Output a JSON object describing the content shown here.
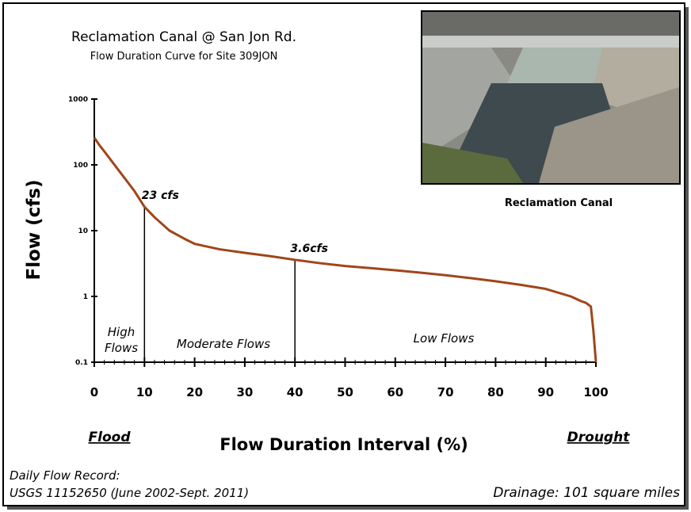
{
  "chart_data": {
    "type": "line",
    "title": "Reclamation Canal @ San Jon Rd.",
    "subtitle": "Flow Duration Curve for Site 309JON",
    "x_label": "Flow Duration Interval (%)",
    "y_label": "Flow (cfs)",
    "x_left_label": "Flood",
    "x_right_label": "Drought",
    "photo_caption": "Reclamation Canal",
    "footnote_lines": [
      "Daily Flow Record:",
      "USGS 11152650 (June 2002-Sept. 2011)"
    ],
    "drainage_note": "Drainage: 101 square miles",
    "region_labels": [
      "High",
      "Flows",
      "Moderate Flows",
      "Low Flows"
    ],
    "annotations": [
      {
        "text": "23 cfs",
        "x": 10,
        "y": 23
      },
      {
        "text": "3.6cfs",
        "x": 40,
        "y": 3.6
      }
    ],
    "ylog": true,
    "xlim": [
      0,
      100
    ],
    "xticks": [
      0,
      10,
      20,
      30,
      40,
      50,
      60,
      70,
      80,
      90,
      100
    ],
    "ylim": [
      0.1,
      1000
    ],
    "yticks": [
      1000,
      100,
      10,
      1,
      0.1
    ],
    "series": [
      {
        "color": "#a0461a",
        "x": [
          0,
          1,
          2,
          5,
          8,
          10,
          12,
          15,
          18,
          20,
          25,
          30,
          35,
          40,
          45,
          50,
          55,
          60,
          65,
          70,
          75,
          80,
          85,
          90,
          95,
          97,
          98,
          99,
          99.5,
          100
        ],
        "values": [
          260,
          200,
          160,
          80,
          40,
          23,
          16,
          10,
          7.5,
          6.3,
          5.2,
          4.6,
          4.1,
          3.6,
          3.2,
          2.9,
          2.7,
          2.5,
          2.3,
          2.1,
          1.9,
          1.7,
          1.5,
          1.3,
          1.0,
          0.85,
          0.8,
          0.7,
          0.3,
          0.1
        ]
      }
    ]
  }
}
